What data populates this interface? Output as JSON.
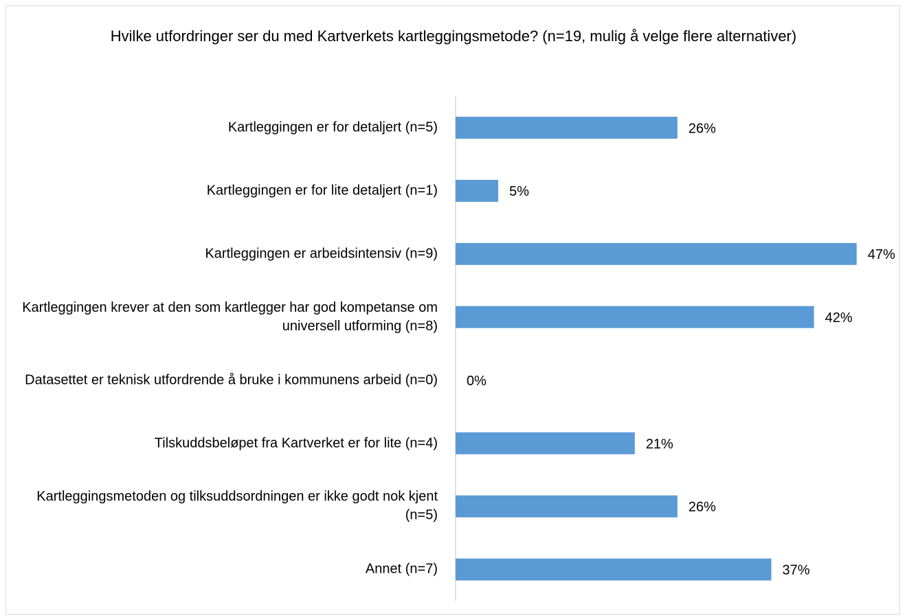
{
  "chart_data": {
    "type": "bar",
    "orientation": "horizontal",
    "title": "Hvilke utfordringer ser du med Kartverkets kartleggingsmetode? (n=19, mulig å velge flere alternativer)",
    "categories": [
      "Kartleggingen er for detaljert (n=5)",
      "Kartleggingen er for lite detaljert (n=1)",
      "Kartleggingen er arbeidsintensiv (n=9)",
      "Kartleggingen krever at den som kartlegger har god kompetanse om universell utforming (n=8)",
      "Datasettet er teknisk utfordrende å bruke i kommunens arbeid (n=0)",
      "Tilskuddsbeløpet fra Kartverket er for lite (n=4)",
      "Kartleggingsmetoden og tilksuddsordningen er ikke godt nok kjent (n=5)",
      "Annet (n=7)"
    ],
    "values": [
      26,
      5,
      47,
      42,
      0,
      21,
      26,
      37
    ],
    "value_labels": [
      "26%",
      "5%",
      "47%",
      "42%",
      "0%",
      "21%",
      "26%",
      "37%"
    ],
    "color": "#5b9bd5",
    "xlim": [
      0,
      50
    ]
  }
}
